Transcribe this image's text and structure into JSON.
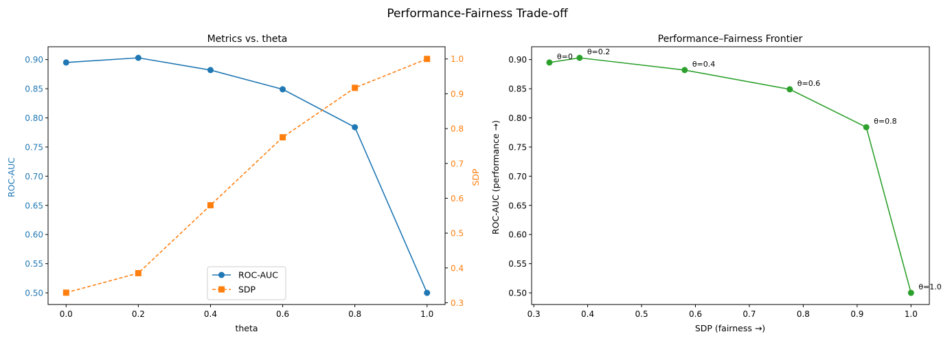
{
  "figure": {
    "suptitle": "Performance-Fairness Trade-off"
  },
  "colors": {
    "roc": "#1f77b4",
    "sdp": "#ff7f0e",
    "frontier": "#2ca02c",
    "axis": "#000000"
  },
  "chart_data": [
    {
      "type": "line",
      "title": "Metrics vs. theta",
      "xlabel": "theta",
      "ylabel": "ROC-AUC",
      "y2label": "SDP",
      "x": [
        0.0,
        0.2,
        0.4,
        0.6,
        0.8,
        1.0
      ],
      "xlim": [
        -0.05,
        1.05
      ],
      "ylim": [
        0.48,
        0.922
      ],
      "y2lim": [
        0.295,
        1.035
      ],
      "xticks": [
        "0.0",
        "0.2",
        "0.4",
        "0.6",
        "0.8",
        "1.0"
      ],
      "yticks": [
        "0.50",
        "0.55",
        "0.60",
        "0.65",
        "0.70",
        "0.75",
        "0.80",
        "0.85",
        "0.90"
      ],
      "y2ticks": [
        "0.3",
        "0.4",
        "0.5",
        "0.6",
        "0.7",
        "0.8",
        "0.9",
        "1.0"
      ],
      "legend_position": "lower-center",
      "series": [
        {
          "name": "ROC-AUC",
          "axis": "left",
          "marker": "circle",
          "linestyle": "solid",
          "values": [
            0.895,
            0.903,
            0.882,
            0.849,
            0.784,
            0.5
          ]
        },
        {
          "name": "SDP",
          "axis": "right",
          "marker": "square",
          "linestyle": "dashed",
          "values": [
            0.329,
            0.385,
            0.58,
            0.775,
            0.917,
            1.0
          ]
        }
      ]
    },
    {
      "type": "line",
      "title": "Performance–Fairness Frontier",
      "xlabel": "SDP (fairness →)",
      "ylabel": "ROC-AUC (performance →)",
      "xlim": [
        0.296,
        1.034
      ],
      "ylim": [
        0.48,
        0.922
      ],
      "xticks": [
        "0.3",
        "0.4",
        "0.5",
        "0.6",
        "0.7",
        "0.8",
        "0.9",
        "1.0"
      ],
      "yticks": [
        "0.50",
        "0.55",
        "0.60",
        "0.65",
        "0.70",
        "0.75",
        "0.80",
        "0.85",
        "0.90"
      ],
      "series": [
        {
          "x": [
            0.329,
            0.385,
            0.58,
            0.775,
            0.917,
            1.0
          ],
          "values": [
            0.895,
            0.903,
            0.882,
            0.849,
            0.784,
            0.5
          ],
          "labels": [
            "θ=0",
            "θ=0.2",
            "θ=0.4",
            "θ=0.6",
            "θ=0.8",
            "θ=1.0"
          ]
        }
      ]
    }
  ]
}
